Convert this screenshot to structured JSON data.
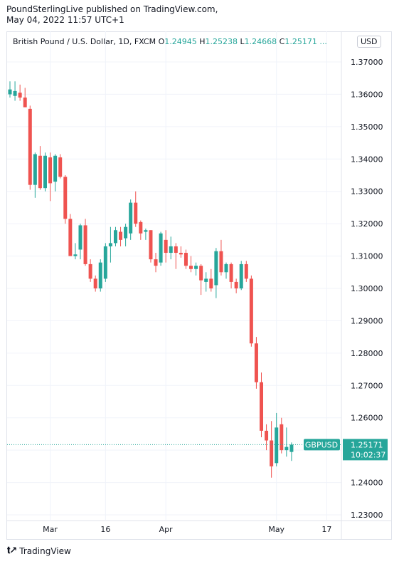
{
  "header": {
    "line1": "PoundSterlingLive published on TradingView.com,",
    "line2": "May 04, 2022 11:57 UTC+1"
  },
  "legend": {
    "title": "British Pound / U.S. Dollar, 1D, FXCM",
    "o_label": "O",
    "o_value": "1.24945",
    "h_label": "H",
    "h_value": "1.25238",
    "l_label": "L",
    "l_value": "1.24668",
    "c_label": "C",
    "c_value": "1.25171 ..."
  },
  "currency": "USD",
  "price_tag": {
    "symbol": "GBPUSD",
    "price": "1.25171",
    "countdown": "10:02:37"
  },
  "footer": {
    "brand": "TradingView"
  },
  "colors": {
    "up": "#26a69a",
    "down": "#ef5350",
    "grid": "#f0f3fa",
    "axis_text": "#131722"
  },
  "chart_data": {
    "type": "candlestick",
    "symbol": "GBPUSD",
    "y_ticks": [
      "1.37000",
      "1.36000",
      "1.35000",
      "1.34000",
      "1.33000",
      "1.32000",
      "1.31000",
      "1.30000",
      "1.29000",
      "1.28000",
      "1.27000",
      "1.26000",
      "1.25000",
      "1.24000",
      "1.23000"
    ],
    "ylim": [
      1.23,
      1.37
    ],
    "x_ticks": [
      {
        "label": "Mar",
        "index": 8
      },
      {
        "label": "16",
        "index": 19
      },
      {
        "label": "Apr",
        "index": 31
      },
      {
        "label": "May",
        "index": 53
      },
      {
        "label": "17",
        "index": 63
      }
    ],
    "last_price": 1.25171,
    "candles": [
      {
        "o": 1.36,
        "h": 1.364,
        "l": 1.359,
        "c": 1.3615
      },
      {
        "o": 1.3595,
        "h": 1.364,
        "l": 1.358,
        "c": 1.361
      },
      {
        "o": 1.3605,
        "h": 1.363,
        "l": 1.358,
        "c": 1.359
      },
      {
        "o": 1.359,
        "h": 1.362,
        "l": 1.356,
        "c": 1.356
      },
      {
        "o": 1.3555,
        "h": 1.3565,
        "l": 1.3305,
        "c": 1.332
      },
      {
        "o": 1.332,
        "h": 1.342,
        "l": 1.328,
        "c": 1.3415
      },
      {
        "o": 1.341,
        "h": 1.344,
        "l": 1.3305,
        "c": 1.331
      },
      {
        "o": 1.331,
        "h": 1.342,
        "l": 1.33,
        "c": 1.341
      },
      {
        "o": 1.3405,
        "h": 1.342,
        "l": 1.327,
        "c": 1.3325
      },
      {
        "o": 1.333,
        "h": 1.3415,
        "l": 1.33,
        "c": 1.341
      },
      {
        "o": 1.3405,
        "h": 1.3415,
        "l": 1.334,
        "c": 1.3345
      },
      {
        "o": 1.3345,
        "h": 1.335,
        "l": 1.32,
        "c": 1.3215
      },
      {
        "o": 1.3215,
        "h": 1.323,
        "l": 1.31,
        "c": 1.31
      },
      {
        "o": 1.31,
        "h": 1.314,
        "l": 1.309,
        "c": 1.3105
      },
      {
        "o": 1.312,
        "h": 1.32,
        "l": 1.309,
        "c": 1.3195
      },
      {
        "o": 1.3195,
        "h": 1.3215,
        "l": 1.307,
        "c": 1.3075
      },
      {
        "o": 1.3075,
        "h": 1.309,
        "l": 1.302,
        "c": 1.303
      },
      {
        "o": 1.303,
        "h": 1.304,
        "l": 1.299,
        "c": 1.3
      },
      {
        "o": 1.3,
        "h": 1.309,
        "l": 1.299,
        "c": 1.308
      },
      {
        "o": 1.303,
        "h": 1.314,
        "l": 1.302,
        "c": 1.313
      },
      {
        "o": 1.313,
        "h": 1.319,
        "l": 1.308,
        "c": 1.314
      },
      {
        "o": 1.314,
        "h": 1.319,
        "l": 1.313,
        "c": 1.318
      },
      {
        "o": 1.3175,
        "h": 1.319,
        "l": 1.313,
        "c": 1.315
      },
      {
        "o": 1.3155,
        "h": 1.32,
        "l": 1.313,
        "c": 1.319
      },
      {
        "o": 1.317,
        "h": 1.3275,
        "l": 1.315,
        "c": 1.3265
      },
      {
        "o": 1.3265,
        "h": 1.33,
        "l": 1.319,
        "c": 1.32
      },
      {
        "o": 1.3205,
        "h": 1.321,
        "l": 1.315,
        "c": 1.317
      },
      {
        "o": 1.3175,
        "h": 1.3185,
        "l": 1.315,
        "c": 1.318
      },
      {
        "o": 1.318,
        "h": 1.318,
        "l": 1.308,
        "c": 1.309
      },
      {
        "o": 1.309,
        "h": 1.311,
        "l": 1.305,
        "c": 1.307
      },
      {
        "o": 1.308,
        "h": 1.3175,
        "l": 1.307,
        "c": 1.317
      },
      {
        "o": 1.315,
        "h": 1.318,
        "l": 1.308,
        "c": 1.311
      },
      {
        "o": 1.311,
        "h": 1.316,
        "l": 1.309,
        "c": 1.313
      },
      {
        "o": 1.313,
        "h": 1.314,
        "l": 1.306,
        "c": 1.311
      },
      {
        "o": 1.311,
        "h": 1.313,
        "l": 1.3095,
        "c": 1.3105
      },
      {
        "o": 1.311,
        "h": 1.312,
        "l": 1.306,
        "c": 1.307
      },
      {
        "o": 1.307,
        "h": 1.31,
        "l": 1.305,
        "c": 1.306
      },
      {
        "o": 1.306,
        "h": 1.308,
        "l": 1.304,
        "c": 1.307
      },
      {
        "o": 1.307,
        "h": 1.3075,
        "l": 1.298,
        "c": 1.3025
      },
      {
        "o": 1.302,
        "h": 1.305,
        "l": 1.299,
        "c": 1.303
      },
      {
        "o": 1.303,
        "h": 1.306,
        "l": 1.299,
        "c": 1.3
      },
      {
        "o": 1.301,
        "h": 1.3125,
        "l": 1.297,
        "c": 1.3115
      },
      {
        "o": 1.3115,
        "h": 1.315,
        "l": 1.304,
        "c": 1.305
      },
      {
        "o": 1.305,
        "h": 1.308,
        "l": 1.303,
        "c": 1.3075
      },
      {
        "o": 1.3075,
        "h": 1.308,
        "l": 1.3,
        "c": 1.302
      },
      {
        "o": 1.302,
        "h": 1.303,
        "l": 1.2985,
        "c": 1.3
      },
      {
        "o": 1.3,
        "h": 1.3085,
        "l": 1.2995,
        "c": 1.3075
      },
      {
        "o": 1.3075,
        "h": 1.3085,
        "l": 1.302,
        "c": 1.303
      },
      {
        "o": 1.303,
        "h": 1.304,
        "l": 1.282,
        "c": 1.283
      },
      {
        "o": 1.283,
        "h": 1.285,
        "l": 1.269,
        "c": 1.271
      },
      {
        "o": 1.271,
        "h": 1.274,
        "l": 1.254,
        "c": 1.256
      },
      {
        "o": 1.256,
        "h": 1.258,
        "l": 1.25,
        "c": 1.253
      },
      {
        "o": 1.253,
        "h": 1.259,
        "l": 1.2415,
        "c": 1.245
      },
      {
        "o": 1.246,
        "h": 1.2615,
        "l": 1.245,
        "c": 1.257
      },
      {
        "o": 1.258,
        "h": 1.26,
        "l": 1.249,
        "c": 1.25
      },
      {
        "o": 1.25,
        "h": 1.257,
        "l": 1.248,
        "c": 1.251
      },
      {
        "o": 1.24945,
        "h": 1.25238,
        "l": 1.24668,
        "c": 1.25171
      }
    ]
  }
}
